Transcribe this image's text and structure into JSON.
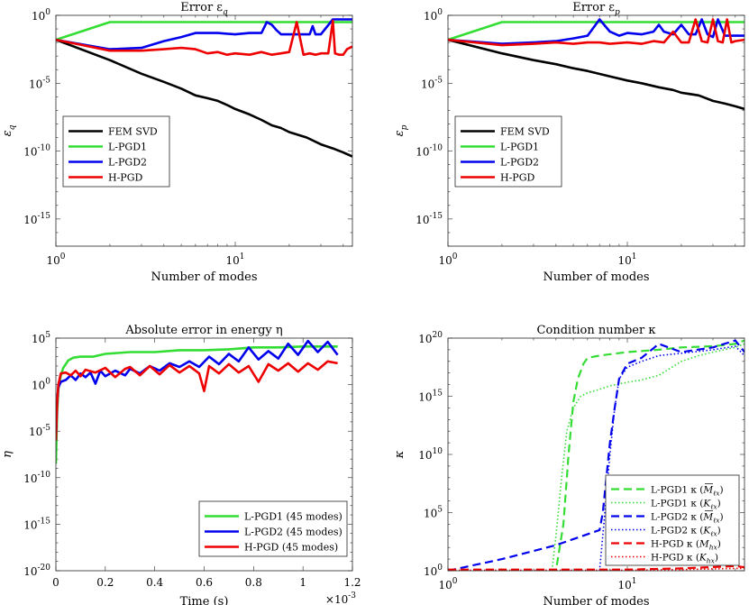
{
  "chart_data": [
    {
      "id": "error-q",
      "type": "line",
      "title": "Error ε",
      "title_sub": "q",
      "xlabel": "Number of modes",
      "ylabel": "ε",
      "ylabel_sub": "q",
      "xscale": "log",
      "yscale": "log",
      "xlim": [
        1,
        45
      ],
      "ylim_exp": [
        -17,
        0
      ],
      "x_tick_labels": [
        {
          "base": "10",
          "exp": "0"
        },
        {
          "base": "10",
          "exp": "1"
        }
      ],
      "y_tick_labels": [
        {
          "base": "10",
          "exp": "0"
        },
        {
          "base": "10",
          "exp": "-5"
        },
        {
          "base": "10",
          "exp": "-10"
        },
        {
          "base": "10",
          "exp": "-15"
        }
      ],
      "legend": {
        "position": "lower-left",
        "entries": [
          "FEM SVD",
          "L-PGD1",
          "L-PGD2",
          "H-PGD"
        ]
      },
      "series": [
        {
          "name": "FEM SVD",
          "color": "#000000",
          "style": "solid",
          "x": [
            1,
            2,
            3,
            4,
            5,
            6,
            7,
            8,
            9,
            10,
            12,
            14,
            16,
            18,
            20,
            25,
            30,
            35,
            40,
            45
          ],
          "log10y": [
            -1.8,
            -3.3,
            -4.3,
            -4.9,
            -5.4,
            -5.9,
            -6.1,
            -6.3,
            -6.6,
            -6.9,
            -7.3,
            -7.7,
            -8.1,
            -8.3,
            -8.6,
            -9.0,
            -9.5,
            -9.8,
            -10.1,
            -10.4
          ]
        },
        {
          "name": "L-PGD1",
          "color": "#33dd33",
          "style": "solid",
          "x": [
            1,
            2,
            3,
            5,
            10,
            20,
            30,
            45
          ],
          "log10y": [
            -1.8,
            -0.5,
            -0.5,
            -0.5,
            -0.5,
            -0.5,
            -0.5,
            -0.5
          ]
        },
        {
          "name": "L-PGD2",
          "color": "#0000ee",
          "style": "solid",
          "x": [
            1,
            2,
            3,
            4,
            5,
            6,
            7,
            8,
            10,
            12,
            14,
            15,
            16,
            17,
            18,
            20,
            22,
            24,
            26,
            27,
            28,
            30,
            35,
            40,
            45
          ],
          "log10y": [
            -1.8,
            -2.5,
            -2.4,
            -1.9,
            -1.6,
            -1.3,
            -1.3,
            -1.3,
            -1.4,
            -1.3,
            -1.3,
            -0.5,
            -0.7,
            -1.1,
            -1.4,
            -1.4,
            -1.4,
            -1.4,
            -1.4,
            -0.8,
            -1.4,
            -1.4,
            -0.3,
            -0.3,
            -0.3
          ]
        },
        {
          "name": "H-PGD",
          "color": "#ee0000",
          "style": "solid",
          "x": [
            1,
            2,
            3,
            4,
            5,
            6,
            7,
            8,
            9,
            10,
            12,
            14,
            16,
            18,
            20,
            22,
            24,
            26,
            28,
            30,
            33,
            35,
            36,
            38,
            40,
            42,
            45
          ],
          "log10y": [
            -1.8,
            -2.6,
            -2.6,
            -2.5,
            -2.4,
            -2.5,
            -2.8,
            -2.7,
            -2.9,
            -2.8,
            -2.9,
            -2.7,
            -2.9,
            -2.8,
            -2.7,
            -0.5,
            -2.9,
            -2.8,
            -2.9,
            -2.8,
            -2.8,
            -0.4,
            -2.8,
            -2.9,
            -2.9,
            -2.5,
            -2.3
          ]
        }
      ]
    },
    {
      "id": "error-p",
      "type": "line",
      "title": "Error ε",
      "title_sub": "p",
      "xlabel": "Number of modes",
      "ylabel": "ε",
      "ylabel_sub": "p",
      "xscale": "log",
      "yscale": "log",
      "xlim": [
        1,
        45
      ],
      "ylim_exp": [
        -17,
        0
      ],
      "x_tick_labels": [
        {
          "base": "10",
          "exp": "0"
        },
        {
          "base": "10",
          "exp": "1"
        }
      ],
      "y_tick_labels": [
        {
          "base": "10",
          "exp": "0"
        },
        {
          "base": "10",
          "exp": "-5"
        },
        {
          "base": "10",
          "exp": "-10"
        },
        {
          "base": "10",
          "exp": "-15"
        }
      ],
      "legend": {
        "position": "lower-left",
        "entries": [
          "FEM SVD",
          "L-PGD1",
          "L-PGD2",
          "H-PGD"
        ]
      },
      "series": [
        {
          "name": "FEM SVD",
          "color": "#000000",
          "style": "solid",
          "x": [
            1,
            2,
            3,
            4,
            5,
            6,
            8,
            10,
            12,
            15,
            18,
            20,
            25,
            30,
            35,
            40,
            45
          ],
          "log10y": [
            -1.8,
            -2.8,
            -3.3,
            -3.6,
            -3.9,
            -4.1,
            -4.5,
            -4.8,
            -5.0,
            -5.3,
            -5.5,
            -5.7,
            -5.9,
            -6.3,
            -6.5,
            -6.7,
            -6.9
          ]
        },
        {
          "name": "L-PGD1",
          "color": "#33dd33",
          "style": "solid",
          "x": [
            1,
            2,
            3,
            5,
            10,
            20,
            30,
            45
          ],
          "log10y": [
            -1.8,
            -0.5,
            -0.5,
            -0.5,
            -0.5,
            -0.5,
            -0.5,
            -0.5
          ]
        },
        {
          "name": "L-PGD2",
          "color": "#0000ee",
          "style": "solid",
          "x": [
            1,
            2,
            3,
            4,
            5,
            6,
            7,
            8,
            9,
            10,
            12,
            14,
            15,
            16,
            18,
            20,
            22,
            24,
            26,
            28,
            30,
            32,
            35,
            40,
            45
          ],
          "log10y": [
            -1.8,
            -2.1,
            -2.0,
            -1.9,
            -1.7,
            -1.5,
            -0.3,
            -1.2,
            -1.5,
            -1.3,
            -1.4,
            -1.2,
            -0.7,
            -1.2,
            -1.4,
            -0.7,
            -1.4,
            -1.4,
            -0.3,
            -1.4,
            -1.6,
            -0.3,
            -1.5,
            -1.5,
            -1.5
          ]
        },
        {
          "name": "H-PGD",
          "color": "#ee0000",
          "style": "solid",
          "x": [
            1,
            2,
            3,
            4,
            5,
            6,
            7,
            8,
            10,
            12,
            14,
            16,
            18,
            20,
            22,
            24,
            26,
            28,
            30,
            32,
            34,
            36,
            38,
            40,
            45
          ],
          "log10y": [
            -1.8,
            -2.2,
            -2.1,
            -2.0,
            -2.1,
            -2.0,
            -2.0,
            -2.1,
            -2.0,
            -2.1,
            -1.9,
            -2.0,
            -1.2,
            -2.0,
            -2.0,
            -0.3,
            -1.9,
            -2.0,
            -0.3,
            -1.9,
            -2.0,
            -0.3,
            -2.0,
            -1.9,
            -1.8
          ]
        }
      ]
    },
    {
      "id": "energy-eta",
      "type": "line",
      "title": "Absolute error in energy η",
      "xlabel": "Time (s)",
      "ylabel": "η",
      "xscale": "linear",
      "yscale": "log",
      "xlim": [
        0,
        1.2
      ],
      "ylim_exp": [
        -20,
        5
      ],
      "x_multiplier": {
        "base": "×10",
        "exp": "-3"
      },
      "x_tick_labels": [
        "0",
        "0.2",
        "0.4",
        "0.6",
        "0.8",
        "1",
        "1.2"
      ],
      "y_tick_labels": [
        {
          "base": "10",
          "exp": "5"
        },
        {
          "base": "10",
          "exp": "0"
        },
        {
          "base": "10",
          "exp": "-5"
        },
        {
          "base": "10",
          "exp": "-10"
        },
        {
          "base": "10",
          "exp": "-15"
        },
        {
          "base": "10",
          "exp": "-20"
        }
      ],
      "legend": {
        "position": "lower-right",
        "entries": [
          "L-PGD1 (45 modes)",
          "L-PGD2 (45 modes)",
          "H-PGD (45 modes)"
        ]
      },
      "series": [
        {
          "name": "L-PGD1 (45 modes)",
          "color": "#33dd33",
          "style": "solid",
          "x": [
            0,
            0.005,
            0.01,
            0.02,
            0.03,
            0.05,
            0.07,
            0.1,
            0.15,
            0.2,
            0.3,
            0.4,
            0.5,
            0.6,
            0.7,
            0.8,
            0.9,
            1.0,
            1.1,
            1.14
          ],
          "log10y": [
            -8.5,
            -3.0,
            -0.5,
            1.0,
            1.8,
            2.6,
            2.9,
            3.0,
            3.0,
            3.3,
            3.5,
            3.5,
            3.7,
            3.7,
            3.8,
            4.0,
            4.0,
            4.1,
            4.1,
            4.1
          ]
        },
        {
          "name": "L-PGD2 (45 modes)",
          "color": "#0000ee",
          "style": "solid",
          "x": [
            0,
            0.005,
            0.01,
            0.02,
            0.04,
            0.06,
            0.08,
            0.1,
            0.12,
            0.14,
            0.16,
            0.18,
            0.2,
            0.24,
            0.28,
            0.3,
            0.34,
            0.38,
            0.42,
            0.46,
            0.5,
            0.54,
            0.58,
            0.62,
            0.66,
            0.7,
            0.74,
            0.78,
            0.82,
            0.86,
            0.9,
            0.94,
            0.98,
            1.02,
            1.06,
            1.1,
            1.14
          ],
          "log10y": [
            -6.0,
            -2.0,
            -0.3,
            0.3,
            0.5,
            1.0,
            0.5,
            1.2,
            0.8,
            1.3,
            0.1,
            1.5,
            0.9,
            1.5,
            1.0,
            1.7,
            1.2,
            2.0,
            1.5,
            2.3,
            1.9,
            2.5,
            1.9,
            3.0,
            2.2,
            3.3,
            2.5,
            4.0,
            2.7,
            3.6,
            2.8,
            4.4,
            3.2,
            4.7,
            3.5,
            4.6,
            3.2
          ]
        },
        {
          "name": "H-PGD (45 modes)",
          "color": "#ee0000",
          "style": "solid",
          "x": [
            0,
            0.005,
            0.01,
            0.02,
            0.04,
            0.06,
            0.08,
            0.1,
            0.12,
            0.16,
            0.2,
            0.24,
            0.28,
            0.3,
            0.34,
            0.38,
            0.42,
            0.46,
            0.5,
            0.54,
            0.58,
            0.6,
            0.62,
            0.66,
            0.7,
            0.74,
            0.78,
            0.82,
            0.86,
            0.9,
            0.94,
            0.98,
            1.02,
            1.06,
            1.1,
            1.14
          ],
          "log10y": [
            -6.0,
            -2.0,
            0.0,
            1.2,
            1.3,
            1.0,
            1.5,
            0.9,
            1.6,
            1.3,
            1.8,
            0.8,
            1.7,
            1.9,
            1.0,
            2.0,
            1.1,
            2.1,
            1.3,
            2.0,
            1.2,
            -0.7,
            2.0,
            1.2,
            2.2,
            1.3,
            2.0,
            0.3,
            2.2,
            1.5,
            2.3,
            1.4,
            2.3,
            1.6,
            2.5,
            2.3
          ]
        }
      ]
    },
    {
      "id": "condition-kappa",
      "type": "line",
      "title": "Condition number κ",
      "xlabel": "Number of modes",
      "ylabel": "κ",
      "xscale": "log",
      "yscale": "log",
      "xlim": [
        1,
        45
      ],
      "ylim_exp": [
        0,
        20
      ],
      "x_tick_labels": [
        {
          "base": "10",
          "exp": "0"
        },
        {
          "base": "10",
          "exp": "1"
        }
      ],
      "y_tick_labels": [
        {
          "base": "10",
          "exp": "20"
        },
        {
          "base": "10",
          "exp": "15"
        },
        {
          "base": "10",
          "exp": "10"
        },
        {
          "base": "10",
          "exp": "5"
        },
        {
          "base": "10",
          "exp": "0"
        }
      ],
      "legend": {
        "position": "lower-right",
        "entries": [
          {
            "text": "L-PGD1 κ (",
            "sym": "M",
            "sub": "ℓx",
            "bar": true
          },
          {
            "text": "L-PGD1 κ (",
            "sym": "K",
            "sub": "ℓx",
            "bar": false
          },
          {
            "text": "L-PGD2 κ (",
            "sym": "M",
            "sub": "ℓx",
            "bar": true
          },
          {
            "text": "L-PGD2 κ (",
            "sym": "K",
            "sub": "ℓx",
            "bar": false
          },
          {
            "text": "H-PGD κ (",
            "sym": "M",
            "sub": "hx",
            "bar": false
          },
          {
            "text": "H-PGD κ (",
            "sym": "K",
            "sub": "hx",
            "bar": false
          }
        ]
      },
      "series": [
        {
          "name": "L-PGD1 κ (M̄ℓx)",
          "color": "#33dd33",
          "style": "dashed",
          "x": [
            1,
            4,
            4.4,
            4.7,
            5,
            5.3,
            5.7,
            6,
            7,
            10,
            15,
            20,
            30,
            40,
            45
          ],
          "log10y": [
            0,
            0,
            4,
            10,
            14.5,
            16.5,
            17.8,
            18.3,
            18.5,
            18.8,
            19.0,
            19.2,
            19.3,
            19.5,
            19.8
          ]
        },
        {
          "name": "L-PGD1 κ (Kℓx)",
          "color": "#33dd33",
          "style": "dotted",
          "x": [
            1,
            3.8,
            4,
            4.3,
            4.6,
            5,
            5.5,
            6,
            7,
            8,
            10,
            12,
            15,
            20,
            25,
            30,
            40,
            45
          ],
          "log10y": [
            0,
            0,
            3,
            8,
            12,
            14.0,
            15.0,
            15.3,
            15.6,
            15.9,
            16.2,
            16.4,
            16.8,
            18.0,
            18.5,
            18.8,
            19.2,
            19.5
          ]
        },
        {
          "name": "L-PGD2 κ (M̄ℓx)",
          "color": "#0000ee",
          "style": "dashed",
          "x": [
            1,
            2,
            4,
            7,
            7.3,
            8,
            8.5,
            9,
            10,
            12,
            15,
            20,
            30,
            40,
            45
          ],
          "log10y": [
            0,
            1.0,
            2.2,
            3.5,
            5,
            11,
            14,
            16.5,
            17.8,
            18.3,
            19.5,
            18.8,
            19.2,
            19.8,
            18.8
          ]
        },
        {
          "name": "L-PGD2 κ (Kℓx)",
          "color": "#0000ee",
          "style": "dotted",
          "x": [
            1,
            7,
            7.5,
            8,
            8.5,
            9,
            10,
            12,
            15,
            20,
            30,
            40,
            45
          ],
          "log10y": [
            0,
            0,
            5,
            10,
            14,
            16.5,
            17.5,
            18.0,
            18.5,
            18.7,
            19.0,
            19.3,
            18.5
          ]
        },
        {
          "name": "H-PGD κ (Mhx)",
          "color": "#ee0000",
          "style": "dashed",
          "x": [
            1,
            10,
            20,
            40,
            45
          ],
          "log10y": [
            0.1,
            0.1,
            0.2,
            0.4,
            0.3
          ]
        },
        {
          "name": "H-PGD κ (Khx)",
          "color": "#ee0000",
          "style": "dotted",
          "x": [
            1,
            10,
            20,
            40,
            45
          ],
          "log10y": [
            0.05,
            0.05,
            0.1,
            0.2,
            0.2
          ]
        }
      ]
    }
  ]
}
